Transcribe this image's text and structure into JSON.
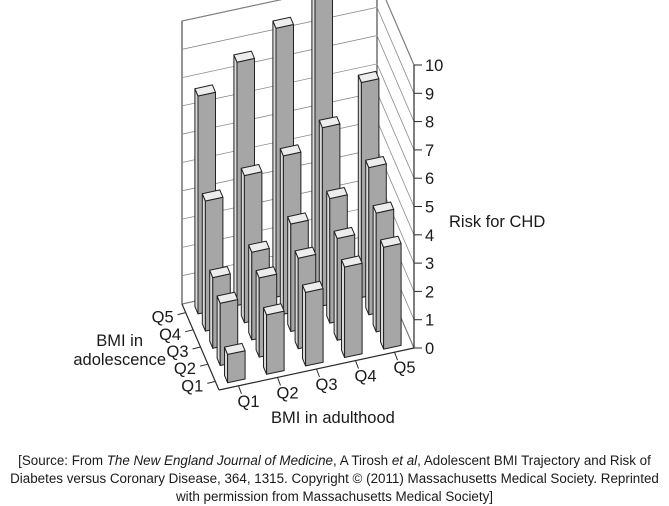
{
  "chart_data": {
    "type": "bar",
    "variant": "3d-bar-grid",
    "zlabel": "Risk for CHD",
    "xlabel": "BMI in adulthood",
    "ylabel_line1": "BMI in",
    "ylabel_line2": "adolescence",
    "x_categories": [
      "Q1",
      "Q2",
      "Q3",
      "Q4",
      "Q5"
    ],
    "y_categories": [
      "Q1",
      "Q2",
      "Q3",
      "Q4",
      "Q5"
    ],
    "z_ticks": [
      "0",
      "1",
      "2",
      "3",
      "4",
      "5",
      "6",
      "7",
      "8",
      "9",
      "10"
    ],
    "zlim": [
      0,
      10
    ],
    "grid": true,
    "bar_color": "#a6a6a6",
    "values": [
      [
        1.0,
        2.1,
        2.6,
        3.2,
        3.6
      ],
      [
        2.2,
        2.8,
        3.2,
        3.6,
        4.2
      ],
      [
        2.5,
        3.1,
        3.8,
        4.4,
        5.2
      ],
      [
        4.6,
        5.2,
        5.6,
        6.3,
        7.6
      ],
      [
        7.7,
        8.6,
        9.5,
        10.6,
        null
      ]
    ],
    "values_note_axes": "values[adolescence Q1..Q5][adulthood Q1..Q5]"
  },
  "caption": {
    "part1": "[Source: From ",
    "journal": "The New England Journal of Medicine",
    "part2": ", A Tirosh ",
    "etal": "et al",
    "part3": ", Adolescent BMI Trajectory and Risk of Diabetes versus Coronary Disease, 364, 1315. Copyright © (2011) Massachusetts Medical Society. Reprinted with permission from Massachusetts Medical Society]"
  }
}
